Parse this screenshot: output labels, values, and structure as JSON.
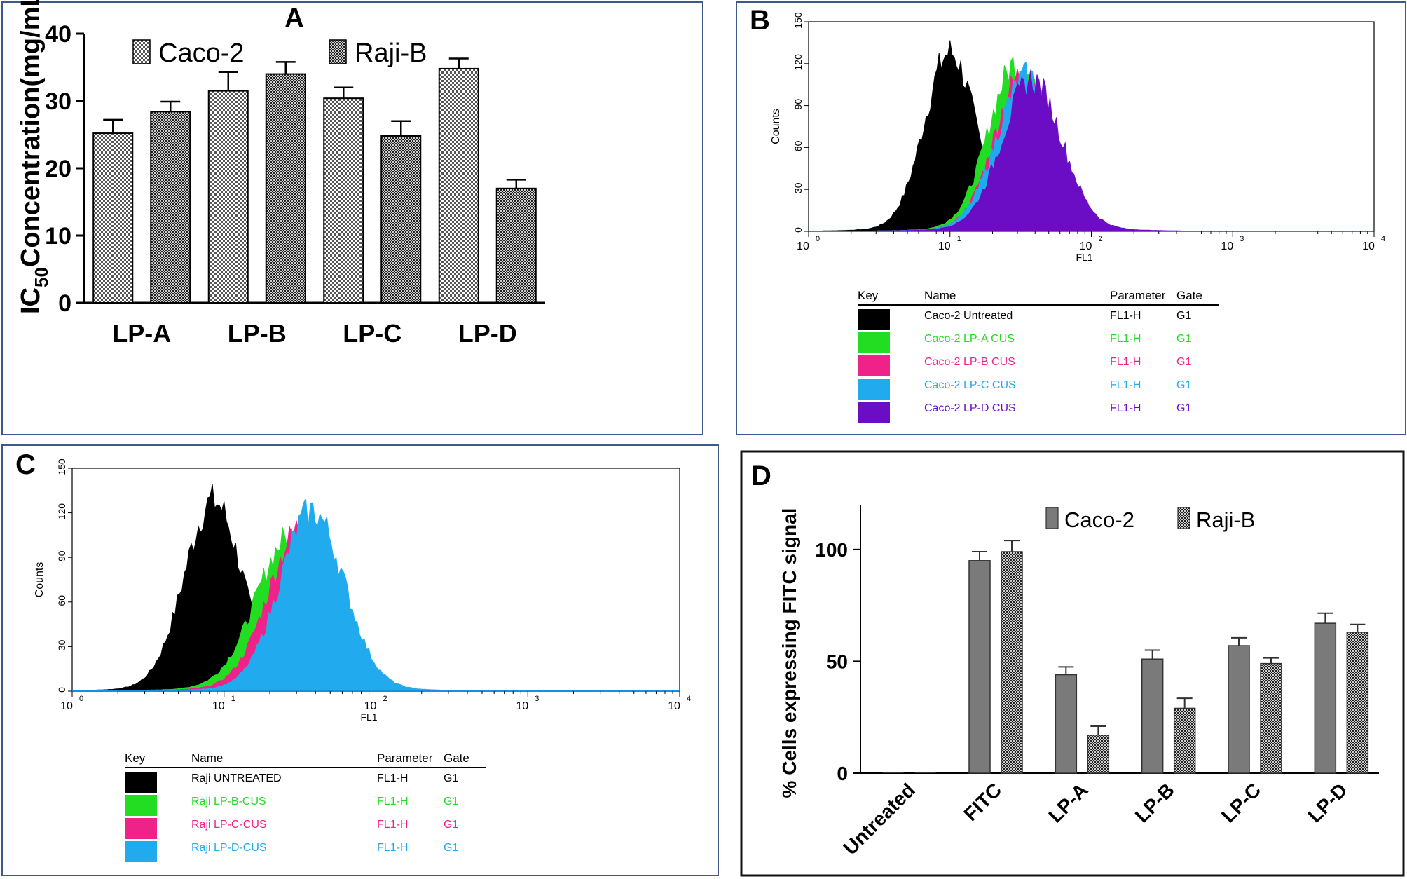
{
  "panels": {
    "A": {
      "letter": "A",
      "chart_data": {
        "type": "bar",
        "title": "",
        "ylabel_prefix": "IC",
        "ylabel_sub": "50",
        "ylabel_suffix": "Concentration(mg/mL)",
        "xlabel": "",
        "categories": [
          "LP-A",
          "LP-B",
          "LP-C",
          "LP-D"
        ],
        "ylim": [
          0,
          40
        ],
        "yticks": [
          0,
          10,
          20,
          30,
          40
        ],
        "series": [
          {
            "name": "Caco-2",
            "values": [
              25.2,
              31.5,
              30.4,
              34.8
            ],
            "errors": [
              2.0,
              2.8,
              1.6,
              1.5
            ],
            "pattern": "light-check"
          },
          {
            "name": "Raji-B",
            "values": [
              28.4,
              34.0,
              24.8,
              17.0
            ],
            "errors": [
              1.5,
              1.8,
              2.2,
              1.3
            ],
            "pattern": "dark-check"
          }
        ],
        "legend_position": "top"
      }
    },
    "B": {
      "letter": "B",
      "chart_data": {
        "type": "area",
        "xscale": "log",
        "xlabel": "FL1",
        "ylabel": "Counts",
        "xlim": [
          1,
          10000
        ],
        "ylim": [
          0,
          150
        ],
        "xtick_labels": [
          "10",
          "10",
          "10",
          "10",
          "10"
        ],
        "xtick_exponents": [
          "0",
          "1",
          "2",
          "3",
          "4"
        ],
        "yticks": [
          0,
          30,
          60,
          90,
          120,
          150
        ],
        "series": [
          {
            "name": "Caco-2 Untreated",
            "parameter": "FL1-H",
            "gate": "G1",
            "color": "#000000",
            "peak_x": 10,
            "peak_y": 125,
            "width_decades": 0.18
          },
          {
            "name": "Caco-2 LP-A CUS",
            "parameter": "FL1-H",
            "gate": "G1",
            "color": "#22dd22",
            "peak_x": 30,
            "peak_y": 118,
            "width_decades": 0.2
          },
          {
            "name": "Caco-2 LP-B CUS",
            "parameter": "FL1-H",
            "gate": "G1",
            "color": "#ee2288",
            "peak_x": 33,
            "peak_y": 110,
            "width_decades": 0.2
          },
          {
            "name": "Caco-2 LP-C CUS",
            "parameter": "FL1-H",
            "gate": "G1",
            "color": "#22aaee",
            "peak_x": 35,
            "peak_y": 108,
            "width_decades": 0.21
          },
          {
            "name": "Caco-2 LP-D CUS",
            "parameter": "FL1-H",
            "gate": "G1",
            "color": "#6a0dc4",
            "peak_x": 38,
            "peak_y": 105,
            "width_decades": 0.21
          }
        ],
        "legend": {
          "key_header": "Key",
          "name_header": "Name",
          "param_header": "Parameter",
          "gate_header": "Gate"
        }
      }
    },
    "C": {
      "letter": "C",
      "chart_data": {
        "type": "area",
        "xscale": "log",
        "xlabel": "FL1",
        "ylabel": "Counts",
        "xlim": [
          1,
          10000
        ],
        "ylim": [
          0,
          150
        ],
        "xtick_labels": [
          "10",
          "10",
          "10",
          "10",
          "10"
        ],
        "xtick_exponents": [
          "0",
          "1",
          "2",
          "3",
          "4"
        ],
        "yticks": [
          0,
          30,
          60,
          90,
          120,
          150
        ],
        "series": [
          {
            "name": "Raji UNTREATED",
            "parameter": "FL1-H",
            "gate": "G1",
            "color": "#000000",
            "peak_x": 8.5,
            "peak_y": 125,
            "width_decades": 0.19
          },
          {
            "name": "Raji LP-B-CUS",
            "parameter": "FL1-H",
            "gate": "G1",
            "color": "#22dd22",
            "peak_x": 28,
            "peak_y": 102,
            "width_decades": 0.23
          },
          {
            "name": "Raji LP-C-CUS",
            "parameter": "FL1-H",
            "gate": "G1",
            "color": "#ee2288",
            "peak_x": 33,
            "peak_y": 108,
            "width_decades": 0.22
          },
          {
            "name": "Raji LP-D-CUS",
            "parameter": "FL1-H",
            "gate": "G1",
            "color": "#22aaee",
            "peak_x": 38,
            "peak_y": 118,
            "width_decades": 0.21
          }
        ],
        "legend": {
          "key_header": "Key",
          "name_header": "Name",
          "param_header": "Parameter",
          "gate_header": "Gate"
        }
      }
    },
    "D": {
      "letter": "D",
      "chart_data": {
        "type": "bar",
        "title": "",
        "ylabel": "% Cells expressing FITC signal",
        "xlabel": "",
        "categories": [
          "Untreated",
          "FITC",
          "LP-A",
          "LP-B",
          "LP-C",
          "LP-D"
        ],
        "ylim": [
          0,
          120
        ],
        "yticks": [
          0,
          50,
          100
        ],
        "series": [
          {
            "name": "Caco-2",
            "values": [
              0,
              95,
              44,
              51,
              57,
              67
            ],
            "errors": [
              0,
              4,
              3.5,
              4,
              3.5,
              4.5
            ],
            "pattern": "solid-gray"
          },
          {
            "name": "Raji-B",
            "values": [
              0,
              99,
              17,
              29,
              49,
              63
            ],
            "errors": [
              0,
              5,
              4,
              4.5,
              2.5,
              3.5
            ],
            "pattern": "dark-check"
          }
        ],
        "legend_position": "top-right"
      }
    }
  }
}
